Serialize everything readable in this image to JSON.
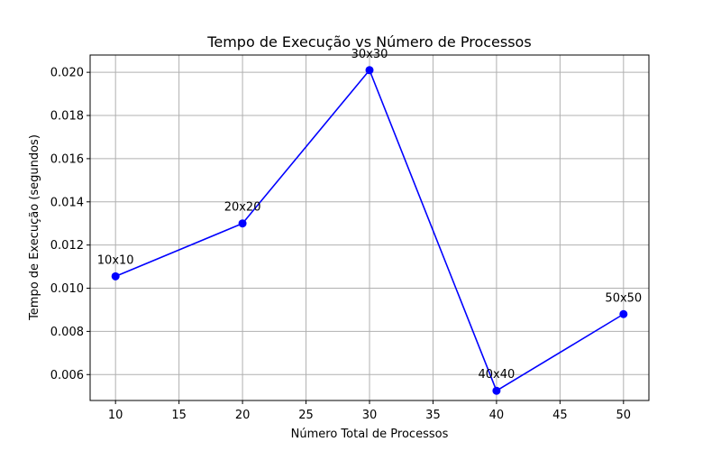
{
  "chart_data": {
    "type": "line",
    "title": "Tempo de Execução vs Número de Processos",
    "xlabel": "Número Total de Processos",
    "ylabel": "Tempo de Execução (segundos)",
    "xlim": [
      8,
      52
    ],
    "ylim": [
      0.0048,
      0.0208
    ],
    "xticks": [
      10,
      15,
      20,
      25,
      30,
      35,
      40,
      45,
      50
    ],
    "yticks": [
      0.006,
      0.008,
      0.01,
      0.012,
      0.014,
      0.016,
      0.018,
      0.02
    ],
    "ytick_labels": [
      "0.006",
      "0.008",
      "0.010",
      "0.012",
      "0.014",
      "0.016",
      "0.018",
      "0.020"
    ],
    "grid": true,
    "series": [
      {
        "color": "#0000ff",
        "marker": "circle",
        "x": [
          10,
          20,
          30,
          40,
          50
        ],
        "y": [
          0.01055,
          0.013,
          0.0201,
          0.00525,
          0.0088
        ],
        "point_labels": [
          "10x10",
          "20x20",
          "30x30",
          "40x40",
          "50x50"
        ]
      }
    ]
  }
}
